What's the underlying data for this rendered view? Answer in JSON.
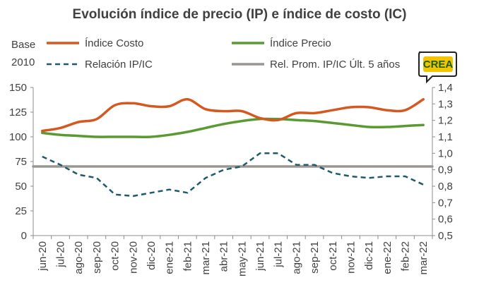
{
  "chart_data": {
    "type": "line",
    "title": "Evolución índice de precio (IP) e índice de costo (IC)",
    "base_label": [
      "Base",
      "2010"
    ],
    "logo_text": "CREA",
    "categories": [
      "jun-20",
      "jul-20",
      "ago-20",
      "sep-20",
      "oct-20",
      "nov-20",
      "dic-20",
      "ene-21",
      "feb-21",
      "mar-21",
      "abr-21",
      "may-21",
      "jun-21",
      "jul-21",
      "ago-21",
      "sep-21",
      "oct-21",
      "nov-21",
      "dic-21",
      "ene-22",
      "feb-22",
      "mar-22"
    ],
    "left_axis": {
      "ylim": [
        0,
        150
      ],
      "ticks": [
        "0",
        "25",
        "50",
        "75",
        "100",
        "125",
        "150"
      ]
    },
    "right_axis": {
      "ylim": [
        0.5,
        1.4
      ],
      "ticks": [
        "0,5",
        "0,6",
        "0,7",
        "0,8",
        "0,9",
        "1,0",
        "1,1",
        "1,2",
        "1,3",
        "1,4"
      ]
    },
    "series": [
      {
        "name": "Índice Costo",
        "axis": "left",
        "color": "#d4581f",
        "style": "solid",
        "smooth": true,
        "values": [
          106,
          109,
          115,
          118,
          132,
          134,
          131,
          131,
          138,
          128,
          126,
          126,
          119,
          117,
          124,
          124,
          127,
          130,
          130,
          127,
          127,
          138
        ]
      },
      {
        "name": "Índice Precio",
        "axis": "left",
        "color": "#5a9a32",
        "style": "solid",
        "smooth": true,
        "values": [
          104,
          102,
          101,
          100,
          100,
          100,
          100,
          102,
          105,
          109,
          113,
          116,
          118,
          118,
          117,
          116,
          114,
          112,
          110,
          110,
          111,
          112
        ]
      },
      {
        "name": "Relación IP/IC",
        "axis": "right",
        "color": "#1f5a6b",
        "style": "dashed",
        "smooth": false,
        "values": [
          0.98,
          0.93,
          0.87,
          0.85,
          0.75,
          0.74,
          0.76,
          0.78,
          0.76,
          0.85,
          0.9,
          0.92,
          1.0,
          1.0,
          0.93,
          0.93,
          0.88,
          0.86,
          0.85,
          0.86,
          0.86,
          0.81
        ]
      },
      {
        "name": "Rel. Prom. IP/IC Últ. 5 años",
        "axis": "right",
        "color": "#9a9690",
        "style": "solid",
        "smooth": false,
        "values": [
          0.92,
          0.92,
          0.92,
          0.92,
          0.92,
          0.92,
          0.92,
          0.92,
          0.92,
          0.92,
          0.92,
          0.92,
          0.92,
          0.92,
          0.92,
          0.92,
          0.92,
          0.92,
          0.92,
          0.92,
          0.92,
          0.92
        ]
      }
    ],
    "legend_placement": "top",
    "grid": false
  }
}
